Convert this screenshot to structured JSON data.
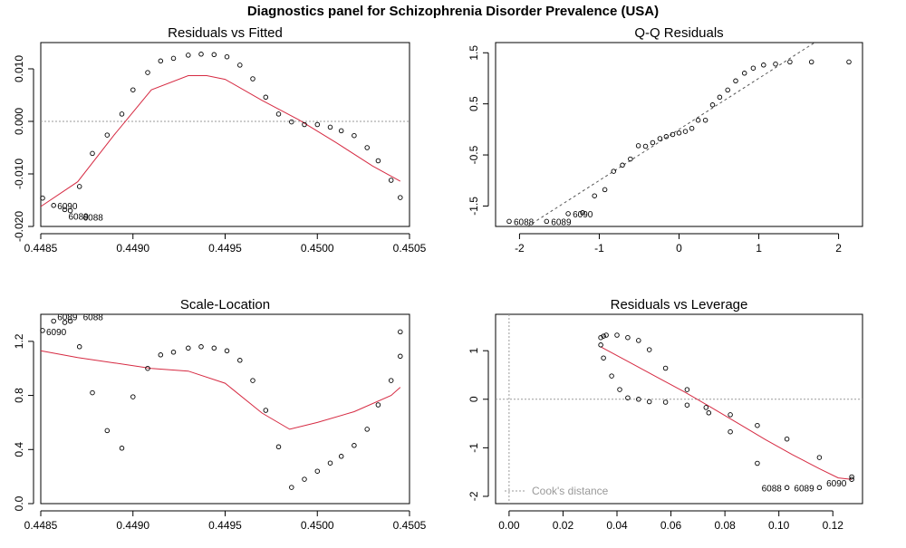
{
  "title": "Diagnostics panel for Schizophrenia Disorder Prevalence (USA)",
  "colors": {
    "points": "#000000",
    "smooth": "#d62a42",
    "reference": "#9a9a9a"
  },
  "chart_data": [
    {
      "type": "scatter",
      "title": "Residuals vs Fitted",
      "xlim": [
        0.4485,
        0.4505
      ],
      "ylim": [
        -0.02,
        0.015
      ],
      "xticks": [
        "0.4485",
        "0.4490",
        "0.4495",
        "0.4500",
        "0.4505"
      ],
      "yticks": [
        "-0.020",
        "-0.010",
        "0.000",
        "0.010"
      ],
      "reference_line": {
        "y": 0
      },
      "points": [
        [
          0.44851,
          -0.0146
        ],
        [
          0.44857,
          -0.016
        ],
        [
          0.44863,
          -0.0168
        ],
        [
          0.44866,
          -0.017
        ],
        [
          0.44871,
          -0.0124
        ],
        [
          0.44878,
          -0.0061
        ],
        [
          0.44886,
          -0.0026
        ],
        [
          0.44894,
          0.0014
        ],
        [
          0.449,
          0.006
        ],
        [
          0.44908,
          0.0093
        ],
        [
          0.44915,
          0.0115
        ],
        [
          0.44922,
          0.012
        ],
        [
          0.4493,
          0.0126
        ],
        [
          0.44937,
          0.0128
        ],
        [
          0.44944,
          0.0127
        ],
        [
          0.44951,
          0.0123
        ],
        [
          0.44958,
          0.0107
        ],
        [
          0.44965,
          0.0081
        ],
        [
          0.44972,
          0.0046
        ],
        [
          0.44979,
          0.0014
        ],
        [
          0.44986,
          -0.0001
        ],
        [
          0.44993,
          -0.0006
        ],
        [
          0.45,
          -0.0006
        ],
        [
          0.45007,
          -0.0011
        ],
        [
          0.45013,
          -0.0018
        ],
        [
          0.4502,
          -0.0027
        ],
        [
          0.45027,
          -0.005
        ],
        [
          0.45033,
          -0.0075
        ],
        [
          0.4504,
          -0.0112
        ],
        [
          0.45045,
          -0.0145
        ]
      ],
      "smooth": [
        [
          0.4485,
          -0.0162
        ],
        [
          0.4487,
          -0.0115
        ],
        [
          0.4489,
          -0.0025
        ],
        [
          0.4491,
          0.006
        ],
        [
          0.4493,
          0.0087
        ],
        [
          0.4494,
          0.0087
        ],
        [
          0.4495,
          0.008
        ],
        [
          0.4497,
          0.004
        ],
        [
          0.4499,
          0.0003
        ],
        [
          0.4501,
          -0.004
        ],
        [
          0.4503,
          -0.0085
        ],
        [
          0.45045,
          -0.0114
        ]
      ],
      "point_labels": [
        {
          "text": "6090",
          "x": 0.44857,
          "y": -0.016
        },
        {
          "text": "6089",
          "x": 0.44863,
          "y": -0.0168
        },
        {
          "text": "6088",
          "x": 0.44866,
          "y": -0.017
        }
      ]
    },
    {
      "type": "scatter",
      "title": "Q-Q Residuals",
      "xlim": [
        -2.3,
        2.3
      ],
      "ylim": [
        -1.9,
        1.7
      ],
      "xticks": [
        "-2",
        "-1",
        "0",
        "1",
        "2"
      ],
      "yticks": [
        "-1.5",
        "-0.5",
        "0.5",
        "1.5"
      ],
      "reference_line": {
        "intercept": 0,
        "slope": 1
      },
      "points": [
        [
          -2.13,
          -1.8
        ],
        [
          -1.66,
          -1.8
        ],
        [
          -1.39,
          -1.65
        ],
        [
          -1.21,
          -1.63
        ],
        [
          -1.06,
          -1.3
        ],
        [
          -0.93,
          -1.18
        ],
        [
          -0.82,
          -0.82
        ],
        [
          -0.71,
          -0.7
        ],
        [
          -0.61,
          -0.58
        ],
        [
          -0.51,
          -0.32
        ],
        [
          -0.42,
          -0.33
        ],
        [
          -0.33,
          -0.26
        ],
        [
          -0.24,
          -0.18
        ],
        [
          -0.16,
          -0.14
        ],
        [
          -0.08,
          -0.1
        ],
        [
          0.0,
          -0.07
        ],
        [
          0.08,
          -0.04
        ],
        [
          0.16,
          0.02
        ],
        [
          0.24,
          0.18
        ],
        [
          0.33,
          0.18
        ],
        [
          0.42,
          0.48
        ],
        [
          0.51,
          0.63
        ],
        [
          0.61,
          0.77
        ],
        [
          0.71,
          0.95
        ],
        [
          0.82,
          1.1
        ],
        [
          0.93,
          1.2
        ],
        [
          1.06,
          1.26
        ],
        [
          1.21,
          1.28
        ],
        [
          1.39,
          1.32
        ],
        [
          1.66,
          1.32
        ],
        [
          2.13,
          1.32
        ]
      ],
      "point_labels": [
        {
          "text": "6088",
          "x": -2.13,
          "y": -1.8
        },
        {
          "text": "6089",
          "x": -1.66,
          "y": -1.8
        },
        {
          "text": "6090",
          "x": -1.39,
          "y": -1.65
        }
      ]
    },
    {
      "type": "scatter",
      "title": "Scale-Location",
      "xlim": [
        0.4485,
        0.4505
      ],
      "ylim": [
        0,
        1.4
      ],
      "xticks": [
        "0.4485",
        "0.4490",
        "0.4495",
        "0.4500",
        "0.4505"
      ],
      "yticks": [
        "0.0",
        "0.4",
        "0.8",
        "1.2"
      ],
      "points": [
        [
          0.44851,
          1.28
        ],
        [
          0.44857,
          1.35
        ],
        [
          0.44863,
          1.34
        ],
        [
          0.44866,
          1.35
        ],
        [
          0.44871,
          1.16
        ],
        [
          0.44878,
          0.82
        ],
        [
          0.44886,
          0.54
        ],
        [
          0.44894,
          0.41
        ],
        [
          0.449,
          0.79
        ],
        [
          0.44908,
          1.0
        ],
        [
          0.44915,
          1.1
        ],
        [
          0.44922,
          1.12
        ],
        [
          0.4493,
          1.15
        ],
        [
          0.44937,
          1.16
        ],
        [
          0.44944,
          1.15
        ],
        [
          0.44951,
          1.13
        ],
        [
          0.44958,
          1.06
        ],
        [
          0.44965,
          0.91
        ],
        [
          0.44972,
          0.69
        ],
        [
          0.44979,
          0.42
        ],
        [
          0.44986,
          0.12
        ],
        [
          0.44993,
          0.18
        ],
        [
          0.45,
          0.24
        ],
        [
          0.45007,
          0.3
        ],
        [
          0.45013,
          0.35
        ],
        [
          0.4502,
          0.43
        ],
        [
          0.45027,
          0.55
        ],
        [
          0.45033,
          0.73
        ],
        [
          0.4504,
          0.91
        ],
        [
          0.45045,
          1.09
        ],
        [
          0.45045,
          1.27
        ]
      ],
      "smooth": [
        [
          0.4485,
          1.13
        ],
        [
          0.4487,
          1.08
        ],
        [
          0.4489,
          1.04
        ],
        [
          0.4491,
          1.0
        ],
        [
          0.4493,
          0.98
        ],
        [
          0.4495,
          0.89
        ],
        [
          0.4497,
          0.67
        ],
        [
          0.44985,
          0.55
        ],
        [
          0.45,
          0.6
        ],
        [
          0.4502,
          0.68
        ],
        [
          0.4504,
          0.8
        ],
        [
          0.45045,
          0.86
        ]
      ],
      "point_labels": [
        {
          "text": "6090",
          "x": 0.44851,
          "y": 1.28
        },
        {
          "text": "6089",
          "x": 0.44857,
          "y": 1.35
        },
        {
          "text": "6088",
          "x": 0.44866,
          "y": 1.35
        }
      ]
    },
    {
      "type": "scatter",
      "title": "Residuals vs Leverage",
      "xlim": [
        -0.005,
        0.131
      ],
      "ylim": [
        -2.15,
        1.75
      ],
      "xticks": [
        "0.00",
        "0.02",
        "0.04",
        "0.06",
        "0.08",
        "0.10",
        "0.12"
      ],
      "yticks": [
        "-2",
        "-1",
        "0",
        "1"
      ],
      "reference_line": {
        "y": 0,
        "x": 0
      },
      "points": [
        [
          0.034,
          1.27
        ],
        [
          0.034,
          1.12
        ],
        [
          0.035,
          1.3
        ],
        [
          0.035,
          0.85
        ],
        [
          0.036,
          1.32
        ],
        [
          0.038,
          0.48
        ],
        [
          0.04,
          1.32
        ],
        [
          0.041,
          0.2
        ],
        [
          0.044,
          1.27
        ],
        [
          0.044,
          0.03
        ],
        [
          0.048,
          1.21
        ],
        [
          0.048,
          0.0
        ],
        [
          0.052,
          1.02
        ],
        [
          0.052,
          -0.05
        ],
        [
          0.058,
          0.64
        ],
        [
          0.058,
          -0.06
        ],
        [
          0.066,
          0.2
        ],
        [
          0.066,
          -0.12
        ],
        [
          0.073,
          -0.17
        ],
        [
          0.074,
          -0.28
        ],
        [
          0.082,
          -0.32
        ],
        [
          0.082,
          -0.67
        ],
        [
          0.092,
          -0.54
        ],
        [
          0.092,
          -1.32
        ],
        [
          0.103,
          -0.82
        ],
        [
          0.103,
          -1.82
        ],
        [
          0.115,
          -1.2
        ],
        [
          0.115,
          -1.82
        ],
        [
          0.127,
          -1.6
        ],
        [
          0.127,
          -1.65
        ]
      ],
      "smooth": [
        [
          0.034,
          1.08
        ],
        [
          0.045,
          0.75
        ],
        [
          0.055,
          0.45
        ],
        [
          0.065,
          0.15
        ],
        [
          0.075,
          -0.17
        ],
        [
          0.085,
          -0.5
        ],
        [
          0.095,
          -0.83
        ],
        [
          0.105,
          -1.14
        ],
        [
          0.115,
          -1.43
        ],
        [
          0.122,
          -1.62
        ],
        [
          0.127,
          -1.65
        ]
      ],
      "legend": "Cook's distance",
      "legend_position": "bottom-left",
      "point_labels": [
        {
          "text": "6088",
          "x": 0.103,
          "y": -1.82
        },
        {
          "text": "6089",
          "x": 0.115,
          "y": -1.82
        },
        {
          "text": "6090",
          "x": 0.127,
          "y": -1.65
        }
      ]
    }
  ]
}
